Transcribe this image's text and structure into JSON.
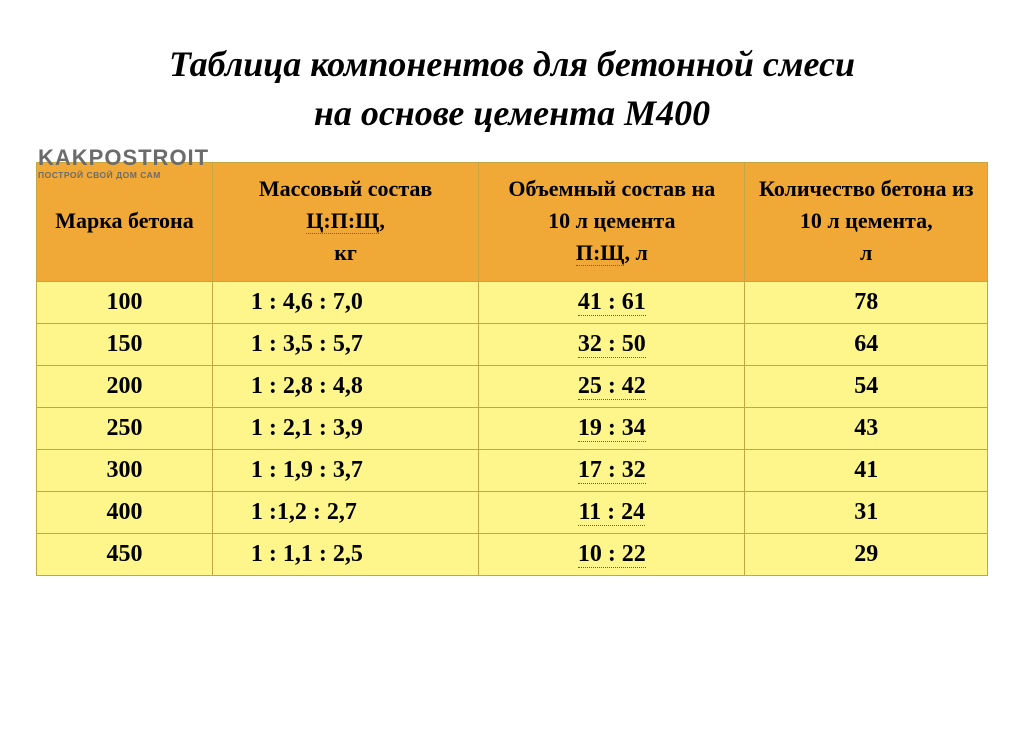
{
  "title_line1": "Таблица компонентов для бетонной смеси",
  "title_line2": "на основе цемента М400",
  "title_fontsize": 36,
  "title_color": "#000000",
  "watermark": {
    "main": "KAKPOSTROIT",
    "sub": "ПОСТРОЙ СВОЙ ДОМ САМ",
    "color": "#6b6b6b"
  },
  "table": {
    "header_bg": "#f0a836",
    "row_bg": "#fef68a",
    "border_color": "#c5a640",
    "header_fontsize": 22,
    "cell_fontsize": 24,
    "columns": [
      "Марка бетона",
      "Массовый состав\nЦ:П:Щ,\nкг",
      "Объемный состав на\n10 л цемента\nП:Щ,  л",
      "Количество бетона из\n10 л цемента,\nл"
    ],
    "dotted_underline_tokens": [
      "Ц:П:Щ",
      "П:Щ"
    ],
    "rows": [
      {
        "grade": "100",
        "mass": "1 : 4,6 : 7,0",
        "vol": "41 : 61",
        "out": "78"
      },
      {
        "grade": "150",
        "mass": "1 : 3,5 : 5,7",
        "vol": "32 : 50",
        "out": "64"
      },
      {
        "grade": "200",
        "mass": "1 : 2,8 : 4,8",
        "vol": "25 : 42",
        "out": "54"
      },
      {
        "grade": "250",
        "mass": "1 : 2,1 : 3,9",
        "vol": "19 : 34",
        "out": "43"
      },
      {
        "grade": "300",
        "mass": "1 : 1,9 : 3,7",
        "vol": "17 : 32",
        "out": "41"
      },
      {
        "grade": "400",
        "mass": "1 :1,2 : 2,7",
        "vol": "11 : 24",
        "out": "31"
      },
      {
        "grade": "450",
        "mass": "1 : 1,1 : 2,5",
        "vol": "10 : 22",
        "out": "29"
      }
    ]
  }
}
